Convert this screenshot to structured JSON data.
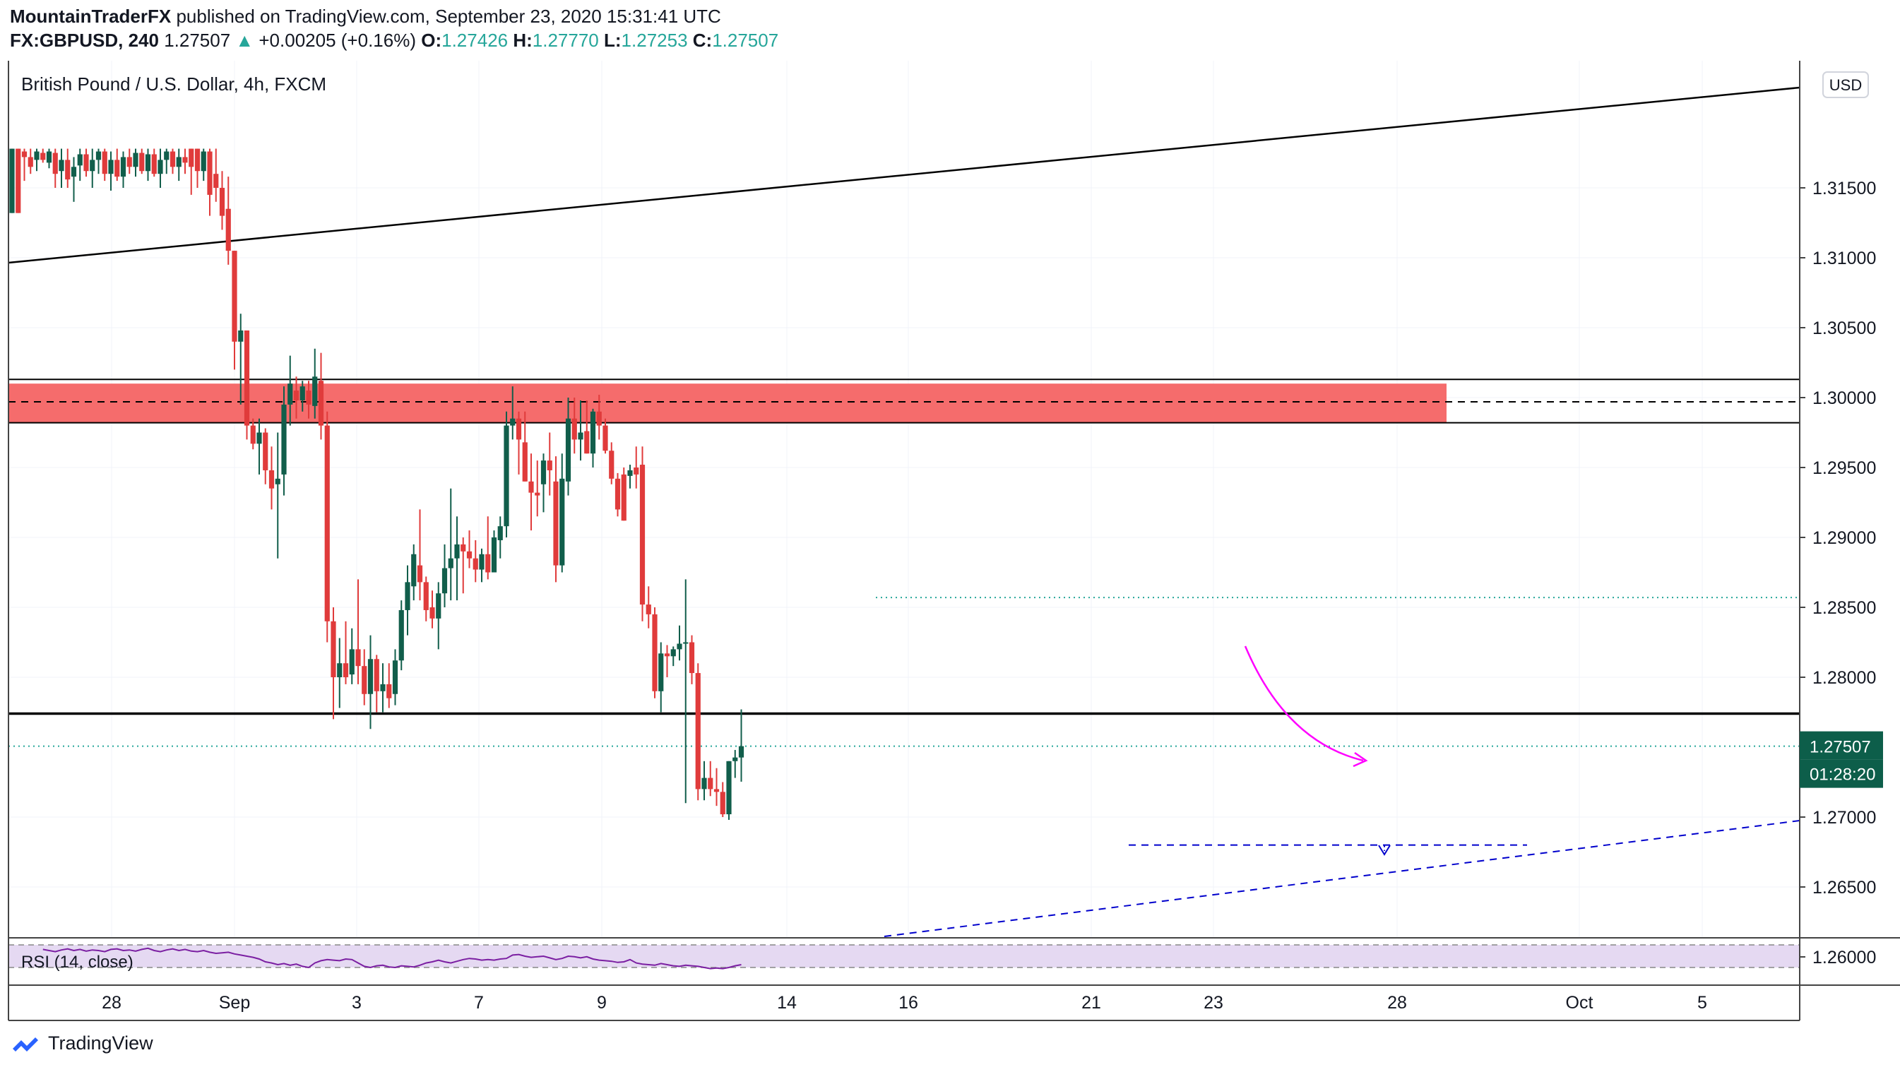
{
  "header": {
    "author": "MountainTraderFX",
    "published": " published on TradingView.com, September 23, 2020 15:31:41 UTC",
    "symbol": "FX:GBPUSD, 240",
    "last": "1.27507",
    "change": "+0.00205 (+0.16%)",
    "o_label": "O:",
    "o": "1.27426",
    "h_label": "H:",
    "h": "1.27770",
    "l_label": "L:",
    "l": "1.27253",
    "c_label": "C:",
    "c": "1.27507"
  },
  "pane_title": "British Pound / U.S. Dollar, 4h, FXCM",
  "currency_button": "USD",
  "price_tag": "1.27507",
  "countdown_tag": "01:28:20",
  "rsi_label": "RSI (14, close)",
  "footer": {
    "brand": "TradingView"
  },
  "colors": {
    "up": "#26a69a",
    "down": "#ef5350",
    "body_up": "#115e4b",
    "body_down": "#e03b3b",
    "zone": "#f56c6c",
    "rsi_band": "#e5d9f2",
    "rsi_line": "#7b1fa2",
    "projection": "#ff00ff",
    "dashed_blue": "#0000cc"
  },
  "chart_data": {
    "type": "candlestick",
    "title": "British Pound / U.S. Dollar, 4h, FXCM",
    "y_ticks": [
      "1.31500",
      "1.31000",
      "1.30500",
      "1.30000",
      "1.29500",
      "1.29000",
      "1.28500",
      "1.28000",
      "1.27000",
      "1.26500",
      "1.26000"
    ],
    "x_ticks": [
      "28",
      "Sep",
      "3",
      "7",
      "9",
      "14",
      "16",
      "21",
      "23",
      "28",
      "Oct",
      "5"
    ],
    "ylim": [
      1.2562,
      1.3178
    ],
    "levels": {
      "zone_top": 1.301,
      "zone_mid": 1.2997,
      "zone_bottom": 1.2982,
      "support": 1.2774,
      "last_price": 1.27507,
      "dotted_resistance": 1.2857,
      "target": 1.268
    },
    "candles": [
      {
        "o": 1.3132,
        "h": 1.3178,
        "l": 1.3132,
        "c": 1.3178
      },
      {
        "o": 1.3178,
        "h": 1.3178,
        "l": 1.3132,
        "c": 1.3132
      },
      {
        "o": 1.3176,
        "h": 1.3178,
        "l": 1.3155,
        "c": 1.3172
      },
      {
        "o": 1.3172,
        "h": 1.3178,
        "l": 1.316,
        "c": 1.3165
      },
      {
        "o": 1.317,
        "h": 1.3178,
        "l": 1.3162,
        "c": 1.3176
      },
      {
        "o": 1.3175,
        "h": 1.3178,
        "l": 1.3168,
        "c": 1.317
      },
      {
        "o": 1.3168,
        "h": 1.3178,
        "l": 1.3164,
        "c": 1.3176
      },
      {
        "o": 1.3175,
        "h": 1.3178,
        "l": 1.315,
        "c": 1.316
      },
      {
        "o": 1.3162,
        "h": 1.3178,
        "l": 1.315,
        "c": 1.317
      },
      {
        "o": 1.317,
        "h": 1.3178,
        "l": 1.315,
        "c": 1.3156
      },
      {
        "o": 1.3158,
        "h": 1.3172,
        "l": 1.314,
        "c": 1.3165
      },
      {
        "o": 1.3166,
        "h": 1.3178,
        "l": 1.3155,
        "c": 1.3174
      },
      {
        "o": 1.3174,
        "h": 1.3178,
        "l": 1.3158,
        "c": 1.3162
      },
      {
        "o": 1.3162,
        "h": 1.3178,
        "l": 1.315,
        "c": 1.317
      },
      {
        "o": 1.317,
        "h": 1.3178,
        "l": 1.316,
        "c": 1.3176
      },
      {
        "o": 1.3176,
        "h": 1.3178,
        "l": 1.3155,
        "c": 1.316
      },
      {
        "o": 1.316,
        "h": 1.3176,
        "l": 1.3148,
        "c": 1.317
      },
      {
        "o": 1.317,
        "h": 1.3178,
        "l": 1.3155,
        "c": 1.3158
      },
      {
        "o": 1.3158,
        "h": 1.3176,
        "l": 1.315,
        "c": 1.3172
      },
      {
        "o": 1.3172,
        "h": 1.3178,
        "l": 1.316,
        "c": 1.3165
      },
      {
        "o": 1.3165,
        "h": 1.3178,
        "l": 1.3158,
        "c": 1.3175
      },
      {
        "o": 1.3175,
        "h": 1.3178,
        "l": 1.316,
        "c": 1.3162
      },
      {
        "o": 1.3162,
        "h": 1.3178,
        "l": 1.3155,
        "c": 1.3174
      },
      {
        "o": 1.3174,
        "h": 1.3178,
        "l": 1.3158,
        "c": 1.316
      },
      {
        "o": 1.316,
        "h": 1.3178,
        "l": 1.315,
        "c": 1.317
      },
      {
        "o": 1.317,
        "h": 1.3178,
        "l": 1.316,
        "c": 1.3176
      },
      {
        "o": 1.3176,
        "h": 1.3178,
        "l": 1.316,
        "c": 1.3165
      },
      {
        "o": 1.3165,
        "h": 1.3178,
        "l": 1.3155,
        "c": 1.3172
      },
      {
        "o": 1.3172,
        "h": 1.3178,
        "l": 1.316,
        "c": 1.3168
      },
      {
        "o": 1.3178,
        "h": 1.3178,
        "l": 1.3145,
        "c": 1.3165
      },
      {
        "o": 1.3178,
        "h": 1.3178,
        "l": 1.315,
        "c": 1.3162
      },
      {
        "o": 1.3162,
        "h": 1.3178,
        "l": 1.3155,
        "c": 1.3176
      },
      {
        "o": 1.3176,
        "h": 1.3178,
        "l": 1.313,
        "c": 1.3145
      },
      {
        "o": 1.316,
        "h": 1.3178,
        "l": 1.314,
        "c": 1.315
      },
      {
        "o": 1.315,
        "h": 1.3162,
        "l": 1.312,
        "c": 1.313
      },
      {
        "o": 1.3135,
        "h": 1.3158,
        "l": 1.3095,
        "c": 1.3105
      },
      {
        "o": 1.3105,
        "h": 1.3105,
        "l": 1.302,
        "c": 1.304
      },
      {
        "o": 1.304,
        "h": 1.306,
        "l": 1.2995,
        "c": 1.3048
      },
      {
        "o": 1.3048,
        "h": 1.3048,
        "l": 1.297,
        "c": 1.298
      },
      {
        "o": 1.298,
        "h": 1.2985,
        "l": 1.2963,
        "c": 1.2967
      },
      {
        "o": 1.2967,
        "h": 1.2985,
        "l": 1.2945,
        "c": 1.2975
      },
      {
        "o": 1.2975,
        "h": 1.2978,
        "l": 1.2938,
        "c": 1.2948
      },
      {
        "o": 1.2948,
        "h": 1.2965,
        "l": 1.292,
        "c": 1.2935
      },
      {
        "o": 1.2938,
        "h": 1.2975,
        "l": 1.2885,
        "c": 1.2942
      },
      {
        "o": 1.2945,
        "h": 1.3008,
        "l": 1.293,
        "c": 1.2995
      },
      {
        "o": 1.2995,
        "h": 1.303,
        "l": 1.298,
        "c": 1.301
      },
      {
        "o": 1.3005,
        "h": 1.3015,
        "l": 1.2985,
        "c": 1.2998
      },
      {
        "o": 1.2998,
        "h": 1.3012,
        "l": 1.299,
        "c": 1.3008
      },
      {
        "o": 1.3005,
        "h": 1.3012,
        "l": 1.2985,
        "c": 1.2995
      },
      {
        "o": 1.2994,
        "h": 1.3035,
        "l": 1.2985,
        "c": 1.3015
      },
      {
        "o": 1.3012,
        "h": 1.3032,
        "l": 1.297,
        "c": 1.298
      },
      {
        "o": 1.298,
        "h": 1.299,
        "l": 1.2825,
        "c": 1.284
      },
      {
        "o": 1.284,
        "h": 1.285,
        "l": 1.277,
        "c": 1.28
      },
      {
        "o": 1.28,
        "h": 1.2828,
        "l": 1.2778,
        "c": 1.281
      },
      {
        "o": 1.281,
        "h": 1.284,
        "l": 1.2795,
        "c": 1.28
      },
      {
        "o": 1.2802,
        "h": 1.2835,
        "l": 1.2795,
        "c": 1.282
      },
      {
        "o": 1.282,
        "h": 1.287,
        "l": 1.2795,
        "c": 1.2808
      },
      {
        "o": 1.2808,
        "h": 1.282,
        "l": 1.278,
        "c": 1.2788
      },
      {
        "o": 1.2788,
        "h": 1.283,
        "l": 1.2763,
        "c": 1.2813
      },
      {
        "o": 1.2813,
        "h": 1.2816,
        "l": 1.2775,
        "c": 1.279
      },
      {
        "o": 1.279,
        "h": 1.281,
        "l": 1.2775,
        "c": 1.2795
      },
      {
        "o": 1.2795,
        "h": 1.281,
        "l": 1.2778,
        "c": 1.2785
      },
      {
        "o": 1.2788,
        "h": 1.282,
        "l": 1.278,
        "c": 1.2812
      },
      {
        "o": 1.2812,
        "h": 1.2855,
        "l": 1.2805,
        "c": 1.2848
      },
      {
        "o": 1.2848,
        "h": 1.288,
        "l": 1.283,
        "c": 1.2868
      },
      {
        "o": 1.2865,
        "h": 1.2895,
        "l": 1.2855,
        "c": 1.2888
      },
      {
        "o": 1.288,
        "h": 1.292,
        "l": 1.2855,
        "c": 1.2868
      },
      {
        "o": 1.2868,
        "h": 1.2872,
        "l": 1.284,
        "c": 1.2848
      },
      {
        "o": 1.285,
        "h": 1.2862,
        "l": 1.2835,
        "c": 1.2842
      },
      {
        "o": 1.2842,
        "h": 1.2868,
        "l": 1.282,
        "c": 1.286
      },
      {
        "o": 1.286,
        "h": 1.2895,
        "l": 1.285,
        "c": 1.2878
      },
      {
        "o": 1.2878,
        "h": 1.2935,
        "l": 1.2855,
        "c": 1.2885
      },
      {
        "o": 1.2885,
        "h": 1.2915,
        "l": 1.2855,
        "c": 1.2895
      },
      {
        "o": 1.2895,
        "h": 1.29,
        "l": 1.286,
        "c": 1.289
      },
      {
        "o": 1.289,
        "h": 1.2905,
        "l": 1.2878,
        "c": 1.2885
      },
      {
        "o": 1.2885,
        "h": 1.2898,
        "l": 1.2868,
        "c": 1.2877
      },
      {
        "o": 1.2877,
        "h": 1.2892,
        "l": 1.2868,
        "c": 1.2888
      },
      {
        "o": 1.2888,
        "h": 1.2915,
        "l": 1.287,
        "c": 1.2875
      },
      {
        "o": 1.2875,
        "h": 1.2905,
        "l": 1.2875,
        "c": 1.29
      },
      {
        "o": 1.2898,
        "h": 1.2915,
        "l": 1.2885,
        "c": 1.2908
      },
      {
        "o": 1.2908,
        "h": 1.299,
        "l": 1.29,
        "c": 1.298
      },
      {
        "o": 1.298,
        "h": 1.3008,
        "l": 1.297,
        "c": 1.2985
      },
      {
        "o": 1.2985,
        "h": 1.299,
        "l": 1.2945,
        "c": 1.297
      },
      {
        "o": 1.2968,
        "h": 1.299,
        "l": 1.294,
        "c": 1.294
      },
      {
        "o": 1.294,
        "h": 1.296,
        "l": 1.2905,
        "c": 1.2932
      },
      {
        "o": 1.2932,
        "h": 1.2955,
        "l": 1.2915,
        "c": 1.293
      },
      {
        "o": 1.2938,
        "h": 1.296,
        "l": 1.2918,
        "c": 1.2955
      },
      {
        "o": 1.2955,
        "h": 1.2975,
        "l": 1.293,
        "c": 1.2948
      },
      {
        "o": 1.294,
        "h": 1.2958,
        "l": 1.2868,
        "c": 1.288
      },
      {
        "o": 1.288,
        "h": 1.296,
        "l": 1.2875,
        "c": 1.2942
      },
      {
        "o": 1.294,
        "h": 1.3,
        "l": 1.293,
        "c": 1.2985
      },
      {
        "o": 1.2985,
        "h": 1.3,
        "l": 1.296,
        "c": 1.297
      },
      {
        "o": 1.297,
        "h": 1.2998,
        "l": 1.2955,
        "c": 1.2975
      },
      {
        "o": 1.2976,
        "h": 1.2998,
        "l": 1.296,
        "c": 1.296
      },
      {
        "o": 1.296,
        "h": 1.2992,
        "l": 1.295,
        "c": 1.299
      },
      {
        "o": 1.299,
        "h": 1.3002,
        "l": 1.297,
        "c": 1.298
      },
      {
        "o": 1.298,
        "h": 1.2985,
        "l": 1.296,
        "c": 1.2962
      },
      {
        "o": 1.2962,
        "h": 1.2968,
        "l": 1.2938,
        "c": 1.2942
      },
      {
        "o": 1.2942,
        "h": 1.2946,
        "l": 1.2915,
        "c": 1.292
      },
      {
        "o": 1.2945,
        "h": 1.295,
        "l": 1.2912,
        "c": 1.2912
      },
      {
        "o": 1.2944,
        "h": 1.2952,
        "l": 1.2935,
        "c": 1.2948
      },
      {
        "o": 1.295,
        "h": 1.2965,
        "l": 1.2935,
        "c": 1.2945
      },
      {
        "o": 1.2952,
        "h": 1.2965,
        "l": 1.284,
        "c": 1.2852
      },
      {
        "o": 1.2852,
        "h": 1.2865,
        "l": 1.2835,
        "c": 1.2845
      },
      {
        "o": 1.2845,
        "h": 1.285,
        "l": 1.2785,
        "c": 1.279
      },
      {
        "o": 1.279,
        "h": 1.2825,
        "l": 1.2775,
        "c": 1.2817
      },
      {
        "o": 1.2817,
        "h": 1.2823,
        "l": 1.28,
        "c": 1.2815
      },
      {
        "o": 1.2815,
        "h": 1.2822,
        "l": 1.2808,
        "c": 1.282
      },
      {
        "o": 1.282,
        "h": 1.2837,
        "l": 1.2812,
        "c": 1.2824
      },
      {
        "o": 1.2824,
        "h": 1.287,
        "l": 1.271,
        "c": 1.2825
      },
      {
        "o": 1.2825,
        "h": 1.283,
        "l": 1.2795,
        "c": 1.2803
      },
      {
        "o": 1.2803,
        "h": 1.281,
        "l": 1.2712,
        "c": 1.272
      },
      {
        "o": 1.272,
        "h": 1.274,
        "l": 1.2712,
        "c": 1.2728
      },
      {
        "o": 1.2728,
        "h": 1.274,
        "l": 1.2715,
        "c": 1.272
      },
      {
        "o": 1.272,
        "h": 1.2735,
        "l": 1.2708,
        "c": 1.2718
      },
      {
        "o": 1.2718,
        "h": 1.2725,
        "l": 1.27,
        "c": 1.2702
      },
      {
        "o": 1.2702,
        "h": 1.274,
        "l": 1.2698,
        "c": 1.274
      },
      {
        "o": 1.274,
        "h": 1.2748,
        "l": 1.2728,
        "c": 1.27426
      },
      {
        "o": 1.27426,
        "h": 1.2777,
        "l": 1.27253,
        "c": 1.27507
      }
    ],
    "rsi": [
      62,
      60,
      58,
      61,
      63,
      60,
      62,
      59,
      61,
      60,
      58,
      62,
      63,
      60,
      61,
      59,
      62,
      64,
      60,
      58,
      61,
      63,
      60,
      62,
      59,
      58,
      60,
      57,
      55,
      56,
      57,
      54,
      52,
      50,
      48,
      45,
      40,
      38,
      35,
      37,
      34,
      36,
      32,
      30,
      38,
      42,
      44,
      43,
      42,
      45,
      44,
      38,
      32,
      30,
      33,
      34,
      31,
      30,
      33,
      32,
      31,
      34,
      38,
      40,
      43,
      40,
      38,
      41,
      44,
      46,
      45,
      43,
      44,
      43,
      45,
      46,
      52,
      53,
      50,
      48,
      49,
      50,
      47,
      44,
      46,
      50,
      49,
      47,
      49,
      45,
      43,
      42,
      41,
      39,
      40,
      44,
      38,
      36,
      35,
      34,
      37,
      35,
      33,
      32,
      34,
      33,
      32,
      30,
      28,
      29,
      28,
      30,
      33,
      35
    ]
  }
}
